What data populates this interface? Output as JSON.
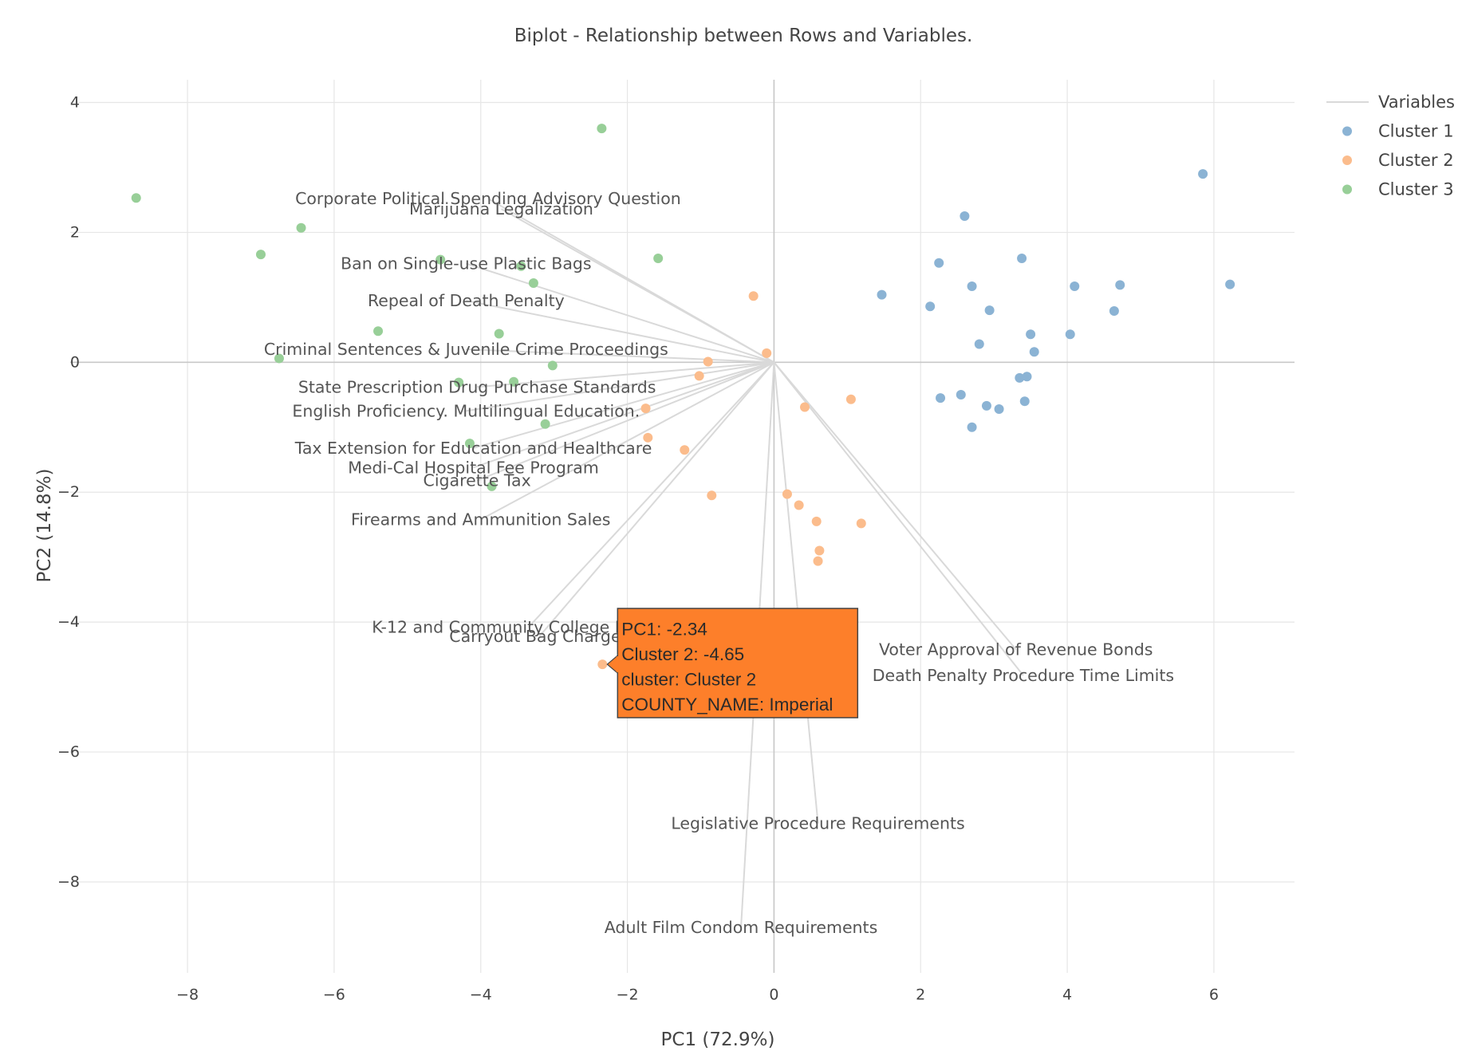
{
  "chart_data": {
    "type": "scatter",
    "title": "Biplot - Relationship between Rows and Variables.",
    "xlabel": "PC1 (72.9%)",
    "ylabel": "PC2 (14.8%)",
    "xlim": [
      -9.6,
      7.1
    ],
    "ylim": [
      -9.4,
      4.35
    ],
    "x_ticks": [
      -8,
      -6,
      -4,
      -2,
      0,
      2,
      4,
      6
    ],
    "y_ticks": [
      4,
      2,
      0,
      -2,
      -4,
      -6,
      -8
    ],
    "x_tick_labels": [
      "−8",
      "−6",
      "−4",
      "−2",
      "0",
      "2",
      "4",
      "6"
    ],
    "y_tick_labels": [
      "4",
      "2",
      "0",
      "−2",
      "−4",
      "−6",
      "−8"
    ],
    "grid": true,
    "legend_position": "top-right",
    "legend": [
      {
        "name": "Variables",
        "kind": "line",
        "color": "#d9d9d9"
      },
      {
        "name": "Cluster 1",
        "kind": "marker",
        "color": "#8bb3d4"
      },
      {
        "name": "Cluster 2",
        "kind": "marker",
        "color": "#fbbc8c"
      },
      {
        "name": "Cluster 3",
        "kind": "marker",
        "color": "#98cf98"
      }
    ],
    "variables": [
      {
        "name": "Corporate Political Spending Advisory Question",
        "x": -3.9,
        "y": 2.52
      },
      {
        "name": "Marijuana Legalization",
        "x": -3.72,
        "y": 2.36
      },
      {
        "name": "Ban on Single-use Plastic Bags",
        "x": -4.2,
        "y": 1.52
      },
      {
        "name": "Repeal of Death Penalty",
        "x": -4.2,
        "y": 0.95
      },
      {
        "name": "Criminal Sentences & Juvenile Crime Proceedings",
        "x": -4.2,
        "y": 0.2
      },
      {
        "name": "State Prescription Drug Purchase Standards",
        "x": -4.05,
        "y": -0.38
      },
      {
        "name": "English Proficiency. Multilingual Education.",
        "x": -4.2,
        "y": -0.75
      },
      {
        "name": "Tax Extension for Education and Healthcare",
        "x": -4.1,
        "y": -1.32
      },
      {
        "name": "Medi-Cal Hospital Fee Program",
        "x": -4.1,
        "y": -1.62
      },
      {
        "name": "Cigarette Tax",
        "x": -4.05,
        "y": -1.82
      },
      {
        "name": "Firearms and Ammunition Sales",
        "x": -4.0,
        "y": -2.42
      },
      {
        "name": "K-12 and Community College Facilities",
        "x": -3.35,
        "y": -4.08
      },
      {
        "name": "Carryout Bag Charges",
        "x": -3.2,
        "y": -4.22
      },
      {
        "name": "Voter Approval of Revenue Bonds",
        "x": 3.3,
        "y": -4.42
      },
      {
        "name": "Death Penalty Procedure Time Limits",
        "x": 3.4,
        "y": -4.82
      },
      {
        "name": "Legislative Procedure Requirements",
        "x": 0.6,
        "y": -7.1
      },
      {
        "name": "Adult Film Condom Requirements",
        "x": -0.45,
        "y": -8.7
      }
    ],
    "series": [
      {
        "name": "Cluster 1",
        "color": "#8bb3d4",
        "points": [
          [
            5.85,
            2.9
          ],
          [
            2.6,
            2.25
          ],
          [
            2.25,
            1.53
          ],
          [
            3.38,
            1.6
          ],
          [
            2.7,
            1.17
          ],
          [
            4.1,
            1.17
          ],
          [
            4.72,
            1.19
          ],
          [
            6.22,
            1.2
          ],
          [
            1.47,
            1.04
          ],
          [
            2.13,
            0.86
          ],
          [
            2.94,
            0.8
          ],
          [
            4.64,
            0.79
          ],
          [
            3.5,
            0.43
          ],
          [
            4.04,
            0.43
          ],
          [
            2.8,
            0.28
          ],
          [
            3.55,
            0.16
          ],
          [
            3.35,
            -0.24
          ],
          [
            3.45,
            -0.22
          ],
          [
            2.27,
            -0.55
          ],
          [
            2.55,
            -0.5
          ],
          [
            2.9,
            -0.67
          ],
          [
            3.07,
            -0.72
          ],
          [
            3.42,
            -0.6
          ],
          [
            2.7,
            -1.0
          ]
        ]
      },
      {
        "name": "Cluster 2",
        "color": "#fbbc8c",
        "points": [
          [
            -0.28,
            1.02
          ],
          [
            -0.1,
            0.14
          ],
          [
            -0.9,
            0.01
          ],
          [
            -1.02,
            -0.21
          ],
          [
            1.05,
            -0.57
          ],
          [
            0.42,
            -0.69
          ],
          [
            -1.75,
            -0.71
          ],
          [
            -1.72,
            -1.16
          ],
          [
            -1.22,
            -1.35
          ],
          [
            -0.85,
            -2.05
          ],
          [
            0.18,
            -2.03
          ],
          [
            0.34,
            -2.2
          ],
          [
            0.58,
            -2.45
          ],
          [
            1.19,
            -2.48
          ],
          [
            0.62,
            -2.9
          ],
          [
            0.6,
            -3.06
          ],
          [
            -2.34,
            -4.65
          ]
        ]
      },
      {
        "name": "Cluster 3",
        "color": "#98cf98",
        "points": [
          [
            -2.35,
            3.6
          ],
          [
            -8.7,
            2.53
          ],
          [
            -6.45,
            2.07
          ],
          [
            -7.0,
            1.66
          ],
          [
            -4.55,
            1.58
          ],
          [
            -3.45,
            1.48
          ],
          [
            -1.58,
            1.6
          ],
          [
            -3.28,
            1.22
          ],
          [
            -5.4,
            0.48
          ],
          [
            -3.75,
            0.44
          ],
          [
            -6.75,
            0.06
          ],
          [
            -3.02,
            -0.05
          ],
          [
            -4.3,
            -0.31
          ],
          [
            -3.55,
            -0.3
          ],
          [
            -3.12,
            -0.95
          ],
          [
            -4.15,
            -1.25
          ],
          [
            -3.85,
            -1.91
          ]
        ]
      }
    ],
    "hover": {
      "point": [
        -2.34,
        -4.65
      ],
      "color": "#fd7f2a",
      "lines": [
        "PC1: -2.34",
        "Cluster 2: -4.65",
        "cluster: Cluster 2",
        "COUNTY_NAME: Imperial"
      ]
    }
  }
}
